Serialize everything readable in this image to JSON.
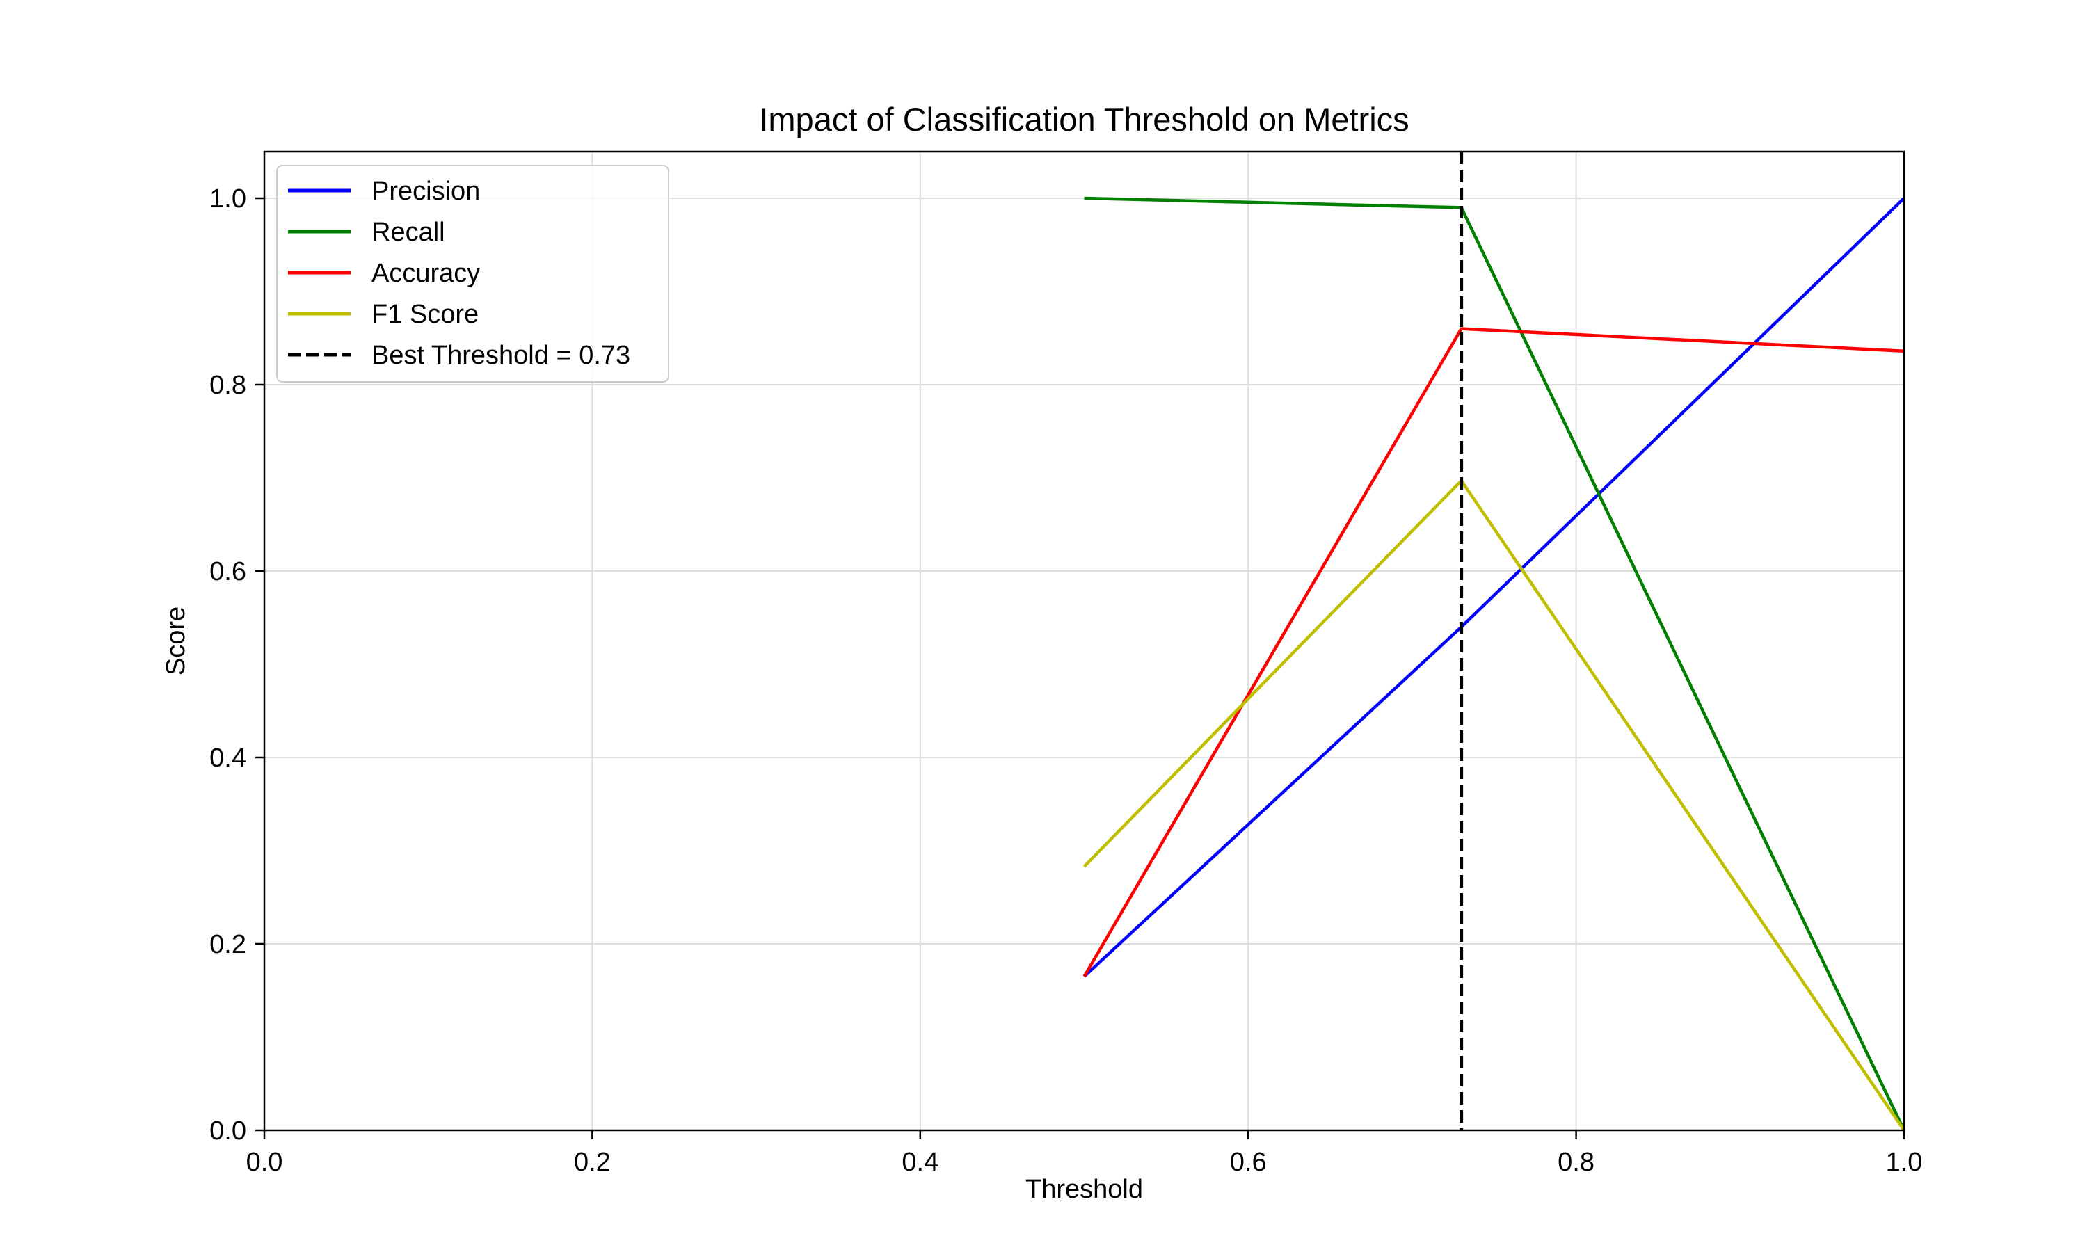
{
  "chart_data": {
    "type": "line",
    "title": "Impact of Classification Threshold on Metrics",
    "xlabel": "Threshold",
    "ylabel": "Score",
    "xlim": [
      0.0,
      1.0
    ],
    "ylim": [
      0.0,
      1.05
    ],
    "xticks": [
      0.0,
      0.2,
      0.4,
      0.6,
      0.8,
      1.0
    ],
    "xtick_labels": [
      "0.0",
      "0.2",
      "0.4",
      "0.6",
      "0.8",
      "1.0"
    ],
    "yticks": [
      0.0,
      0.2,
      0.4,
      0.6,
      0.8,
      1.0
    ],
    "ytick_labels": [
      "0.0",
      "0.2",
      "0.4",
      "0.6",
      "0.8",
      "1.0"
    ],
    "grid": true,
    "legend_position": "upper left",
    "x": [
      0.5,
      0.73,
      1.0
    ],
    "series": [
      {
        "name": "Precision",
        "color": "#0000ff",
        "values": [
          0.165,
          0.54,
          1.0
        ]
      },
      {
        "name": "Recall",
        "color": "#008000",
        "values": [
          1.0,
          0.99,
          0.0
        ]
      },
      {
        "name": "Accuracy",
        "color": "#ff0000",
        "values": [
          0.165,
          0.86,
          0.836
        ]
      },
      {
        "name": "F1 Score",
        "color": "#bfbf00",
        "values": [
          0.283,
          0.697,
          0.0
        ]
      }
    ],
    "reference_line": {
      "name": "Best Threshold = 0.73",
      "x": 0.73,
      "color": "#000000",
      "style": "dashed"
    }
  }
}
